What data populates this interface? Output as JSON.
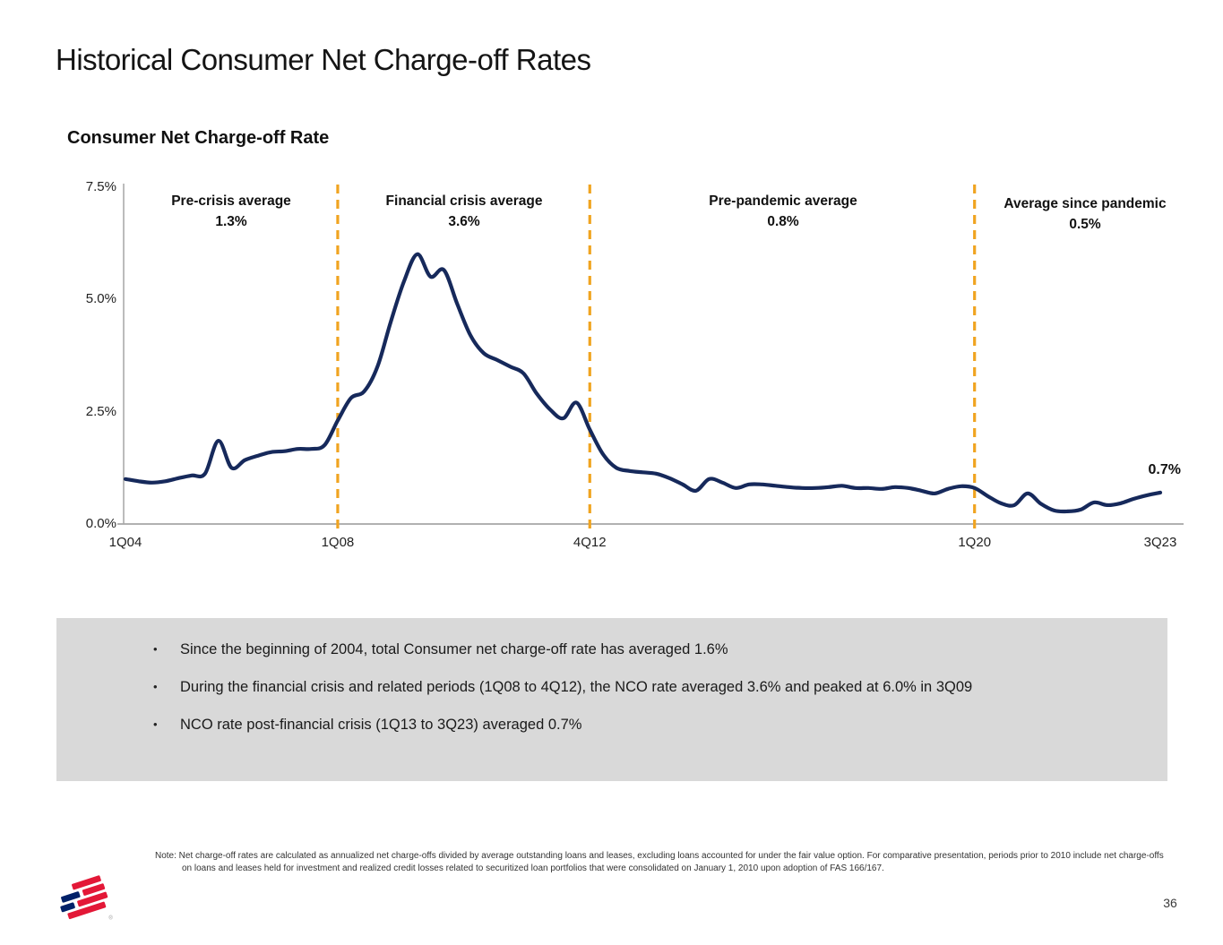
{
  "slide": {
    "title": "Historical Consumer Net Charge-off Rates",
    "page_number": "36",
    "footer_note": "Note: Net charge-off rates are calculated as annualized net charge-offs divided by average outstanding loans and leases, excluding loans accounted for under the fair value option. For comparative presentation, periods prior to 2010 include net charge-offs on loans and leases held for investment and realized credit losses related to securitized loan portfolios that were consolidated on January 1, 2010 upon adoption of FAS 166/167.",
    "logo_icon": "bank-of-america-flag-icon"
  },
  "summary_box": {
    "background_color": "#D9D9D9",
    "bullets": [
      "Since the beginning of 2004, total Consumer net charge-off rate has averaged 1.6%",
      "During the financial crisis and related periods (1Q08 to 4Q12), the NCO rate averaged 3.6% and peaked at 6.0% in 3Q09",
      "NCO rate post-financial crisis (1Q13 to 3Q23) averaged 0.7%"
    ]
  },
  "chart_data": {
    "type": "line",
    "title": "Consumer Net Charge-off Rate",
    "x_unit": "quarter",
    "x_start_label": "1Q04",
    "x_end_label": "3Q23",
    "quarters_total": 79,
    "ylim": [
      0,
      7.5
    ],
    "grid": false,
    "legend_position": "none",
    "line_color": "#16295B",
    "divider_color": "#F0A420",
    "axis_color": "#A6A6A6",
    "y_ticks": [
      {
        "label": "0.0%",
        "value": 0.0
      },
      {
        "label": "2.5%",
        "value": 2.5
      },
      {
        "label": "5.0%",
        "value": 5.0
      },
      {
        "label": "7.5%",
        "value": 7.5
      }
    ],
    "x_ticks": [
      {
        "label": "1Q04",
        "quarter_index": 0
      },
      {
        "label": "1Q08",
        "quarter_index": 16
      },
      {
        "label": "4Q12",
        "quarter_index": 35
      },
      {
        "label": "1Q20",
        "quarter_index": 64
      },
      {
        "label": "3Q23",
        "quarter_index": 78
      }
    ],
    "dividers": [
      {
        "at": "1Q08",
        "quarter_index": 16
      },
      {
        "at": "4Q12",
        "quarter_index": 35
      },
      {
        "at": "1Q20",
        "quarter_index": 64
      }
    ],
    "annotations": [
      {
        "label": "Pre-crisis average",
        "value": "1.3%"
      },
      {
        "label": "Financial crisis average",
        "value": "3.6%"
      },
      {
        "label": "Pre-pandemic average",
        "value": "0.8%"
      },
      {
        "label": "Average since pandemic",
        "value": "0.5%"
      }
    ],
    "end_point_label": "0.7%",
    "series": [
      {
        "name": "Consumer net charge-off rate (%)",
        "values": [
          1.0,
          0.95,
          0.92,
          0.95,
          1.02,
          1.08,
          1.12,
          1.85,
          1.25,
          1.42,
          1.52,
          1.6,
          1.62,
          1.67,
          1.67,
          1.75,
          2.3,
          2.8,
          2.95,
          3.5,
          4.5,
          5.4,
          6.0,
          5.5,
          5.65,
          4.9,
          4.2,
          3.8,
          3.65,
          3.5,
          3.35,
          2.9,
          2.55,
          2.35,
          2.7,
          2.1,
          1.55,
          1.25,
          1.18,
          1.15,
          1.12,
          1.02,
          0.88,
          0.74,
          1.0,
          0.92,
          0.8,
          0.88,
          0.88,
          0.85,
          0.82,
          0.8,
          0.8,
          0.82,
          0.85,
          0.8,
          0.8,
          0.78,
          0.82,
          0.8,
          0.74,
          0.68,
          0.78,
          0.84,
          0.8,
          0.62,
          0.46,
          0.42,
          0.68,
          0.45,
          0.3,
          0.28,
          0.32,
          0.48,
          0.42,
          0.46,
          0.56,
          0.64,
          0.7
        ]
      }
    ]
  }
}
